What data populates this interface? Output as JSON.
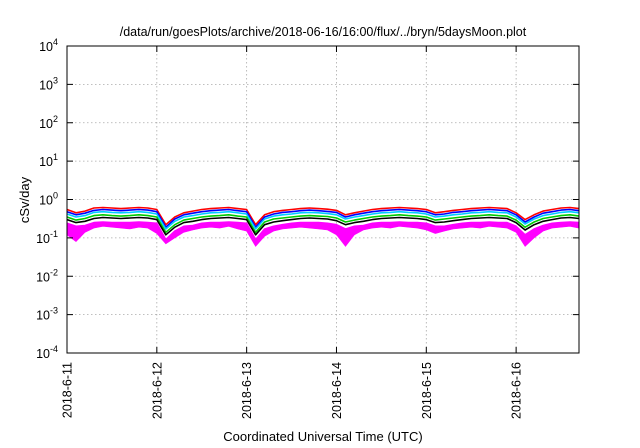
{
  "chart_data": {
    "type": "line",
    "title": "/data/run/goesPlots/archive/2018-06-16/16:00/flux/../bryn/5daysMoon.plot",
    "xlabel": "Coordinated Universal Time (UTC)",
    "ylabel": "cSv/day",
    "y_scale": "log",
    "ylim": [
      0.0001,
      10000
    ],
    "xlim": [
      0,
      5.7
    ],
    "grid": true,
    "y_ticks": [
      {
        "value": 0.0001,
        "base": "10",
        "exp": "-4"
      },
      {
        "value": 0.001,
        "base": "10",
        "exp": "-3"
      },
      {
        "value": 0.01,
        "base": "10",
        "exp": "-2"
      },
      {
        "value": 0.1,
        "base": "10",
        "exp": "-1"
      },
      {
        "value": 1,
        "base": "10",
        "exp": "0"
      },
      {
        "value": 10,
        "base": "10",
        "exp": "1"
      },
      {
        "value": 100,
        "base": "10",
        "exp": "2"
      },
      {
        "value": 1000,
        "base": "10",
        "exp": "3"
      },
      {
        "value": 10000,
        "base": "10",
        "exp": "4"
      }
    ],
    "x_ticks": [
      {
        "value": 0,
        "label": "2018-6-11"
      },
      {
        "value": 1,
        "label": "2018-6-12"
      },
      {
        "value": 2,
        "label": "2018-6-13"
      },
      {
        "value": 3,
        "label": "2018-6-14"
      },
      {
        "value": 4,
        "label": "2018-6-15"
      },
      {
        "value": 5,
        "label": "2018-6-16"
      }
    ],
    "x": [
      0,
      0.1,
      0.2,
      0.3,
      0.4,
      0.5,
      0.6,
      0.7,
      0.8,
      0.9,
      1.0,
      1.1,
      1.2,
      1.3,
      1.4,
      1.5,
      1.6,
      1.7,
      1.8,
      1.9,
      2.0,
      2.1,
      2.2,
      2.3,
      2.4,
      2.5,
      2.6,
      2.7,
      2.8,
      2.9,
      3.0,
      3.1,
      3.2,
      3.3,
      3.4,
      3.5,
      3.6,
      3.7,
      3.8,
      3.9,
      4.0,
      4.1,
      4.2,
      4.3,
      4.4,
      4.5,
      4.6,
      4.7,
      4.8,
      4.9,
      5.0,
      5.1,
      5.2,
      5.3,
      5.4,
      5.5,
      5.6,
      5.7
    ],
    "series": [
      {
        "color": "#ff0000",
        "values": [
          0.55,
          0.45,
          0.5,
          0.6,
          0.62,
          0.6,
          0.58,
          0.6,
          0.62,
          0.6,
          0.55,
          0.22,
          0.35,
          0.45,
          0.5,
          0.55,
          0.58,
          0.6,
          0.62,
          0.58,
          0.55,
          0.22,
          0.4,
          0.48,
          0.52,
          0.55,
          0.58,
          0.6,
          0.58,
          0.56,
          0.52,
          0.4,
          0.45,
          0.5,
          0.55,
          0.58,
          0.6,
          0.62,
          0.6,
          0.58,
          0.55,
          0.45,
          0.48,
          0.52,
          0.55,
          0.58,
          0.6,
          0.62,
          0.6,
          0.58,
          0.45,
          0.3,
          0.4,
          0.5,
          0.55,
          0.6,
          0.62,
          0.58
        ]
      },
      {
        "color": "#0000ff",
        "values": [
          0.48,
          0.4,
          0.44,
          0.52,
          0.55,
          0.53,
          0.51,
          0.53,
          0.55,
          0.53,
          0.48,
          0.19,
          0.31,
          0.4,
          0.44,
          0.48,
          0.51,
          0.53,
          0.55,
          0.51,
          0.48,
          0.19,
          0.35,
          0.42,
          0.46,
          0.48,
          0.51,
          0.53,
          0.51,
          0.49,
          0.46,
          0.35,
          0.4,
          0.44,
          0.48,
          0.51,
          0.53,
          0.55,
          0.53,
          0.51,
          0.48,
          0.4,
          0.42,
          0.46,
          0.48,
          0.51,
          0.53,
          0.55,
          0.53,
          0.51,
          0.4,
          0.26,
          0.35,
          0.44,
          0.48,
          0.53,
          0.55,
          0.51
        ]
      },
      {
        "color": "#00ccff",
        "values": [
          0.42,
          0.35,
          0.38,
          0.46,
          0.48,
          0.46,
          0.45,
          0.46,
          0.48,
          0.46,
          0.42,
          0.17,
          0.27,
          0.35,
          0.38,
          0.42,
          0.45,
          0.46,
          0.48,
          0.45,
          0.42,
          0.17,
          0.31,
          0.37,
          0.4,
          0.42,
          0.45,
          0.46,
          0.45,
          0.43,
          0.4,
          0.31,
          0.35,
          0.38,
          0.42,
          0.45,
          0.46,
          0.48,
          0.46,
          0.45,
          0.42,
          0.35,
          0.37,
          0.4,
          0.42,
          0.45,
          0.46,
          0.48,
          0.46,
          0.45,
          0.35,
          0.23,
          0.31,
          0.38,
          0.42,
          0.46,
          0.48,
          0.45
        ]
      },
      {
        "color": "#00cc00",
        "values": [
          0.35,
          0.29,
          0.32,
          0.38,
          0.4,
          0.38,
          0.37,
          0.38,
          0.4,
          0.38,
          0.35,
          0.14,
          0.22,
          0.29,
          0.32,
          0.35,
          0.37,
          0.38,
          0.4,
          0.37,
          0.35,
          0.14,
          0.26,
          0.31,
          0.33,
          0.35,
          0.37,
          0.38,
          0.37,
          0.36,
          0.33,
          0.26,
          0.29,
          0.32,
          0.35,
          0.37,
          0.38,
          0.4,
          0.38,
          0.37,
          0.35,
          0.29,
          0.31,
          0.33,
          0.35,
          0.37,
          0.38,
          0.4,
          0.38,
          0.37,
          0.29,
          0.19,
          0.26,
          0.32,
          0.35,
          0.38,
          0.4,
          0.37
        ]
      },
      {
        "color": "#000000",
        "values": [
          0.3,
          0.25,
          0.27,
          0.32,
          0.34,
          0.33,
          0.32,
          0.33,
          0.34,
          0.33,
          0.3,
          0.12,
          0.19,
          0.25,
          0.27,
          0.3,
          0.32,
          0.33,
          0.34,
          0.32,
          0.3,
          0.12,
          0.22,
          0.26,
          0.28,
          0.3,
          0.32,
          0.33,
          0.32,
          0.31,
          0.28,
          0.22,
          0.25,
          0.27,
          0.3,
          0.32,
          0.33,
          0.34,
          0.33,
          0.32,
          0.3,
          0.25,
          0.26,
          0.28,
          0.3,
          0.32,
          0.33,
          0.34,
          0.33,
          0.32,
          0.25,
          0.16,
          0.22,
          0.27,
          0.3,
          0.33,
          0.34,
          0.32
        ]
      },
      {
        "color": "#ff00ff",
        "values": [
          0.24,
          0.2,
          0.21,
          0.25,
          0.26,
          0.25,
          0.25,
          0.25,
          0.26,
          0.25,
          0.24,
          0.09,
          0.15,
          0.2,
          0.21,
          0.24,
          0.25,
          0.25,
          0.26,
          0.25,
          0.24,
          0.09,
          0.17,
          0.2,
          0.22,
          0.24,
          0.25,
          0.25,
          0.25,
          0.24,
          0.22,
          0.17,
          0.2,
          0.21,
          0.24,
          0.25,
          0.25,
          0.26,
          0.25,
          0.25,
          0.24,
          0.2,
          0.2,
          0.22,
          0.24,
          0.25,
          0.25,
          0.26,
          0.25,
          0.25,
          0.2,
          0.12,
          0.17,
          0.21,
          0.24,
          0.25,
          0.26,
          0.25
        ]
      }
    ],
    "fill_band": {
      "color": "#ff00ff",
      "low_values": [
        0.12,
        0.08,
        0.14,
        0.18,
        0.2,
        0.19,
        0.18,
        0.17,
        0.19,
        0.18,
        0.13,
        0.07,
        0.1,
        0.14,
        0.16,
        0.18,
        0.19,
        0.18,
        0.2,
        0.17,
        0.15,
        0.06,
        0.11,
        0.15,
        0.17,
        0.18,
        0.19,
        0.18,
        0.17,
        0.16,
        0.12,
        0.06,
        0.12,
        0.16,
        0.18,
        0.19,
        0.18,
        0.2,
        0.19,
        0.18,
        0.16,
        0.13,
        0.15,
        0.17,
        0.18,
        0.19,
        0.18,
        0.2,
        0.19,
        0.18,
        0.14,
        0.06,
        0.1,
        0.15,
        0.18,
        0.19,
        0.2,
        0.18
      ]
    }
  }
}
